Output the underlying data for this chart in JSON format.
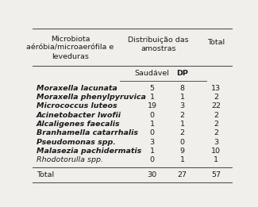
{
  "title_col1": "Microbiota\naéróbia/microaerófila e\nleveduras",
  "title_col2": "Distribuição das\namostras",
  "title_col3": "Total",
  "subheader_saudavel": "Saudável",
  "subheader_dp": "DP",
  "rows": [
    {
      "name": "Moraxella lacunata",
      "saudavel": "5",
      "dp": "8",
      "total": "13",
      "bold": true
    },
    {
      "name": "Moraxella phenylpyruvica",
      "saudavel": "1",
      "dp": "1",
      "total": "2",
      "bold": true
    },
    {
      "name": "Micrococcus luteos",
      "saudavel": "19",
      "dp": "3",
      "total": "22",
      "bold": true
    },
    {
      "name": "Acinetobacter lwofii",
      "saudavel": "0",
      "dp": "2",
      "total": "2",
      "bold": true
    },
    {
      "name": "Alcaligenes faecalis",
      "saudavel": "1",
      "dp": "1",
      "total": "2",
      "bold": true
    },
    {
      "name": "Branhamella catarrhalis",
      "saudavel": "0",
      "dp": "2",
      "total": "2",
      "bold": true
    },
    {
      "name": "Pseudomonas spp.",
      "saudavel": "3",
      "dp": "0",
      "total": "3",
      "bold": true
    },
    {
      "name": "Malasezia pachidermatis",
      "saudavel": "1",
      "dp": "9",
      "total": "10",
      "bold": true
    },
    {
      "name": "Rhodotorulla spp.",
      "saudavel": "0",
      "dp": "1",
      "total": "1",
      "bold": false
    }
  ],
  "footer": {
    "name": "Total",
    "saudavel": "30",
    "dp": "27",
    "total": "57"
  },
  "bg_color": "#f0efeb",
  "text_color": "#1a1a1a",
  "line_color": "#555555",
  "font_size": 6.8
}
